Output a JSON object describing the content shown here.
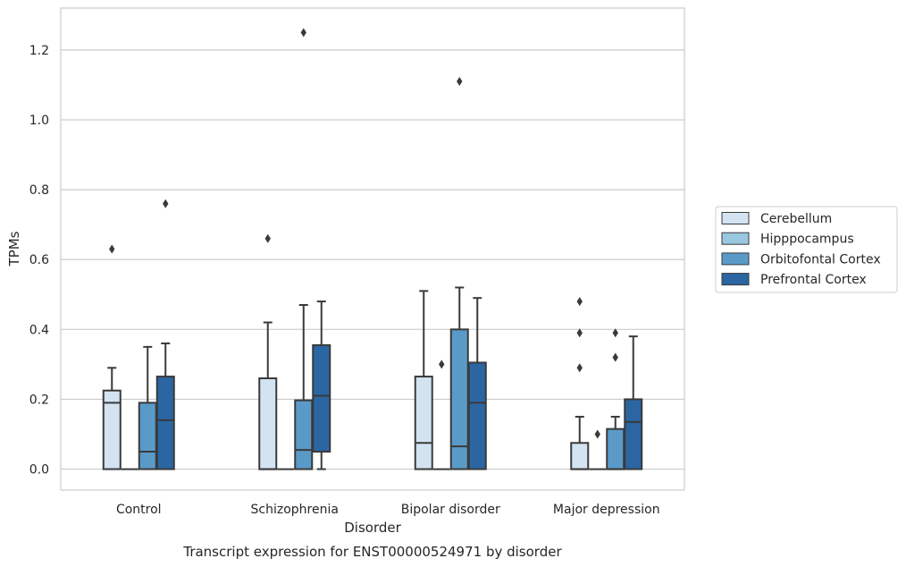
{
  "chart_data": {
    "type": "boxplot",
    "caption": "Transcript expression for ENST00000524971 by disorder",
    "xlabel": "Disorder",
    "ylabel": "TPMs",
    "ylim": [
      -0.06,
      1.32
    ],
    "yticks": [
      0.0,
      0.2,
      0.4,
      0.6,
      0.8,
      1.0,
      1.2
    ],
    "ytick_labels": [
      "0.0",
      "0.2",
      "0.4",
      "0.6",
      "0.8",
      "1.0",
      "1.2"
    ],
    "grid": "horizontal",
    "legend_position": "right",
    "categories": [
      "Control",
      "Schizophrenia",
      "Bipolar disorder",
      "Major depression"
    ],
    "series": [
      {
        "name": "Cerebellum",
        "color": "#d3e3f2",
        "boxes": [
          {
            "whislo": 0.0,
            "q1": 0.0,
            "med": 0.19,
            "q3": 0.225,
            "whishi": 0.29,
            "fliers": [
              0.63
            ]
          },
          {
            "whislo": 0.0,
            "q1": 0.0,
            "med": 0.0,
            "q3": 0.26,
            "whishi": 0.42,
            "fliers": [
              0.66
            ]
          },
          {
            "whislo": 0.0,
            "q1": 0.0,
            "med": 0.075,
            "q3": 0.265,
            "whishi": 0.51,
            "fliers": []
          },
          {
            "whislo": 0.0,
            "q1": 0.0,
            "med": 0.0,
            "q3": 0.075,
            "whishi": 0.15,
            "fliers": [
              0.29,
              0.39,
              0.48
            ]
          }
        ]
      },
      {
        "name": "Hipppocampus",
        "color": "#9ac8e0",
        "boxes": [
          {
            "whislo": 0.0,
            "q1": 0.0,
            "med": 0.0,
            "q3": 0.0,
            "whishi": 0.0,
            "fliers": []
          },
          {
            "whislo": 0.0,
            "q1": 0.0,
            "med": 0.0,
            "q3": 0.0,
            "whishi": 0.0,
            "fliers": []
          },
          {
            "whislo": 0.0,
            "q1": 0.0,
            "med": 0.0,
            "q3": 0.0,
            "whishi": 0.0,
            "fliers": [
              0.3
            ]
          },
          {
            "whislo": 0.0,
            "q1": 0.0,
            "med": 0.0,
            "q3": 0.0,
            "whishi": 0.0,
            "fliers": [
              0.1
            ]
          }
        ]
      },
      {
        "name": "Orbitofontal Cortex",
        "color": "#5a9ac8",
        "boxes": [
          {
            "whislo": 0.0,
            "q1": 0.0,
            "med": 0.05,
            "q3": 0.19,
            "whishi": 0.35,
            "fliers": []
          },
          {
            "whislo": 0.0,
            "q1": 0.0,
            "med": 0.055,
            "q3": 0.197,
            "whishi": 0.47,
            "fliers": [
              1.25
            ]
          },
          {
            "whislo": 0.0,
            "q1": 0.0,
            "med": 0.065,
            "q3": 0.4,
            "whishi": 0.52,
            "fliers": [
              1.11
            ]
          },
          {
            "whislo": 0.0,
            "q1": 0.0,
            "med": 0.0,
            "q3": 0.115,
            "whishi": 0.15,
            "fliers": [
              0.32,
              0.39
            ]
          }
        ]
      },
      {
        "name": "Prefrontal Cortex",
        "color": "#2b66a3",
        "boxes": [
          {
            "whislo": 0.0,
            "q1": 0.0,
            "med": 0.14,
            "q3": 0.265,
            "whishi": 0.36,
            "fliers": [
              0.76
            ]
          },
          {
            "whislo": 0.0,
            "q1": 0.05,
            "med": 0.21,
            "q3": 0.355,
            "whishi": 0.48,
            "fliers": []
          },
          {
            "whislo": 0.0,
            "q1": 0.0,
            "med": 0.19,
            "q3": 0.305,
            "whishi": 0.49,
            "fliers": []
          },
          {
            "whislo": 0.0,
            "q1": 0.0,
            "med": 0.135,
            "q3": 0.2,
            "whishi": 0.38,
            "fliers": []
          }
        ]
      }
    ]
  }
}
